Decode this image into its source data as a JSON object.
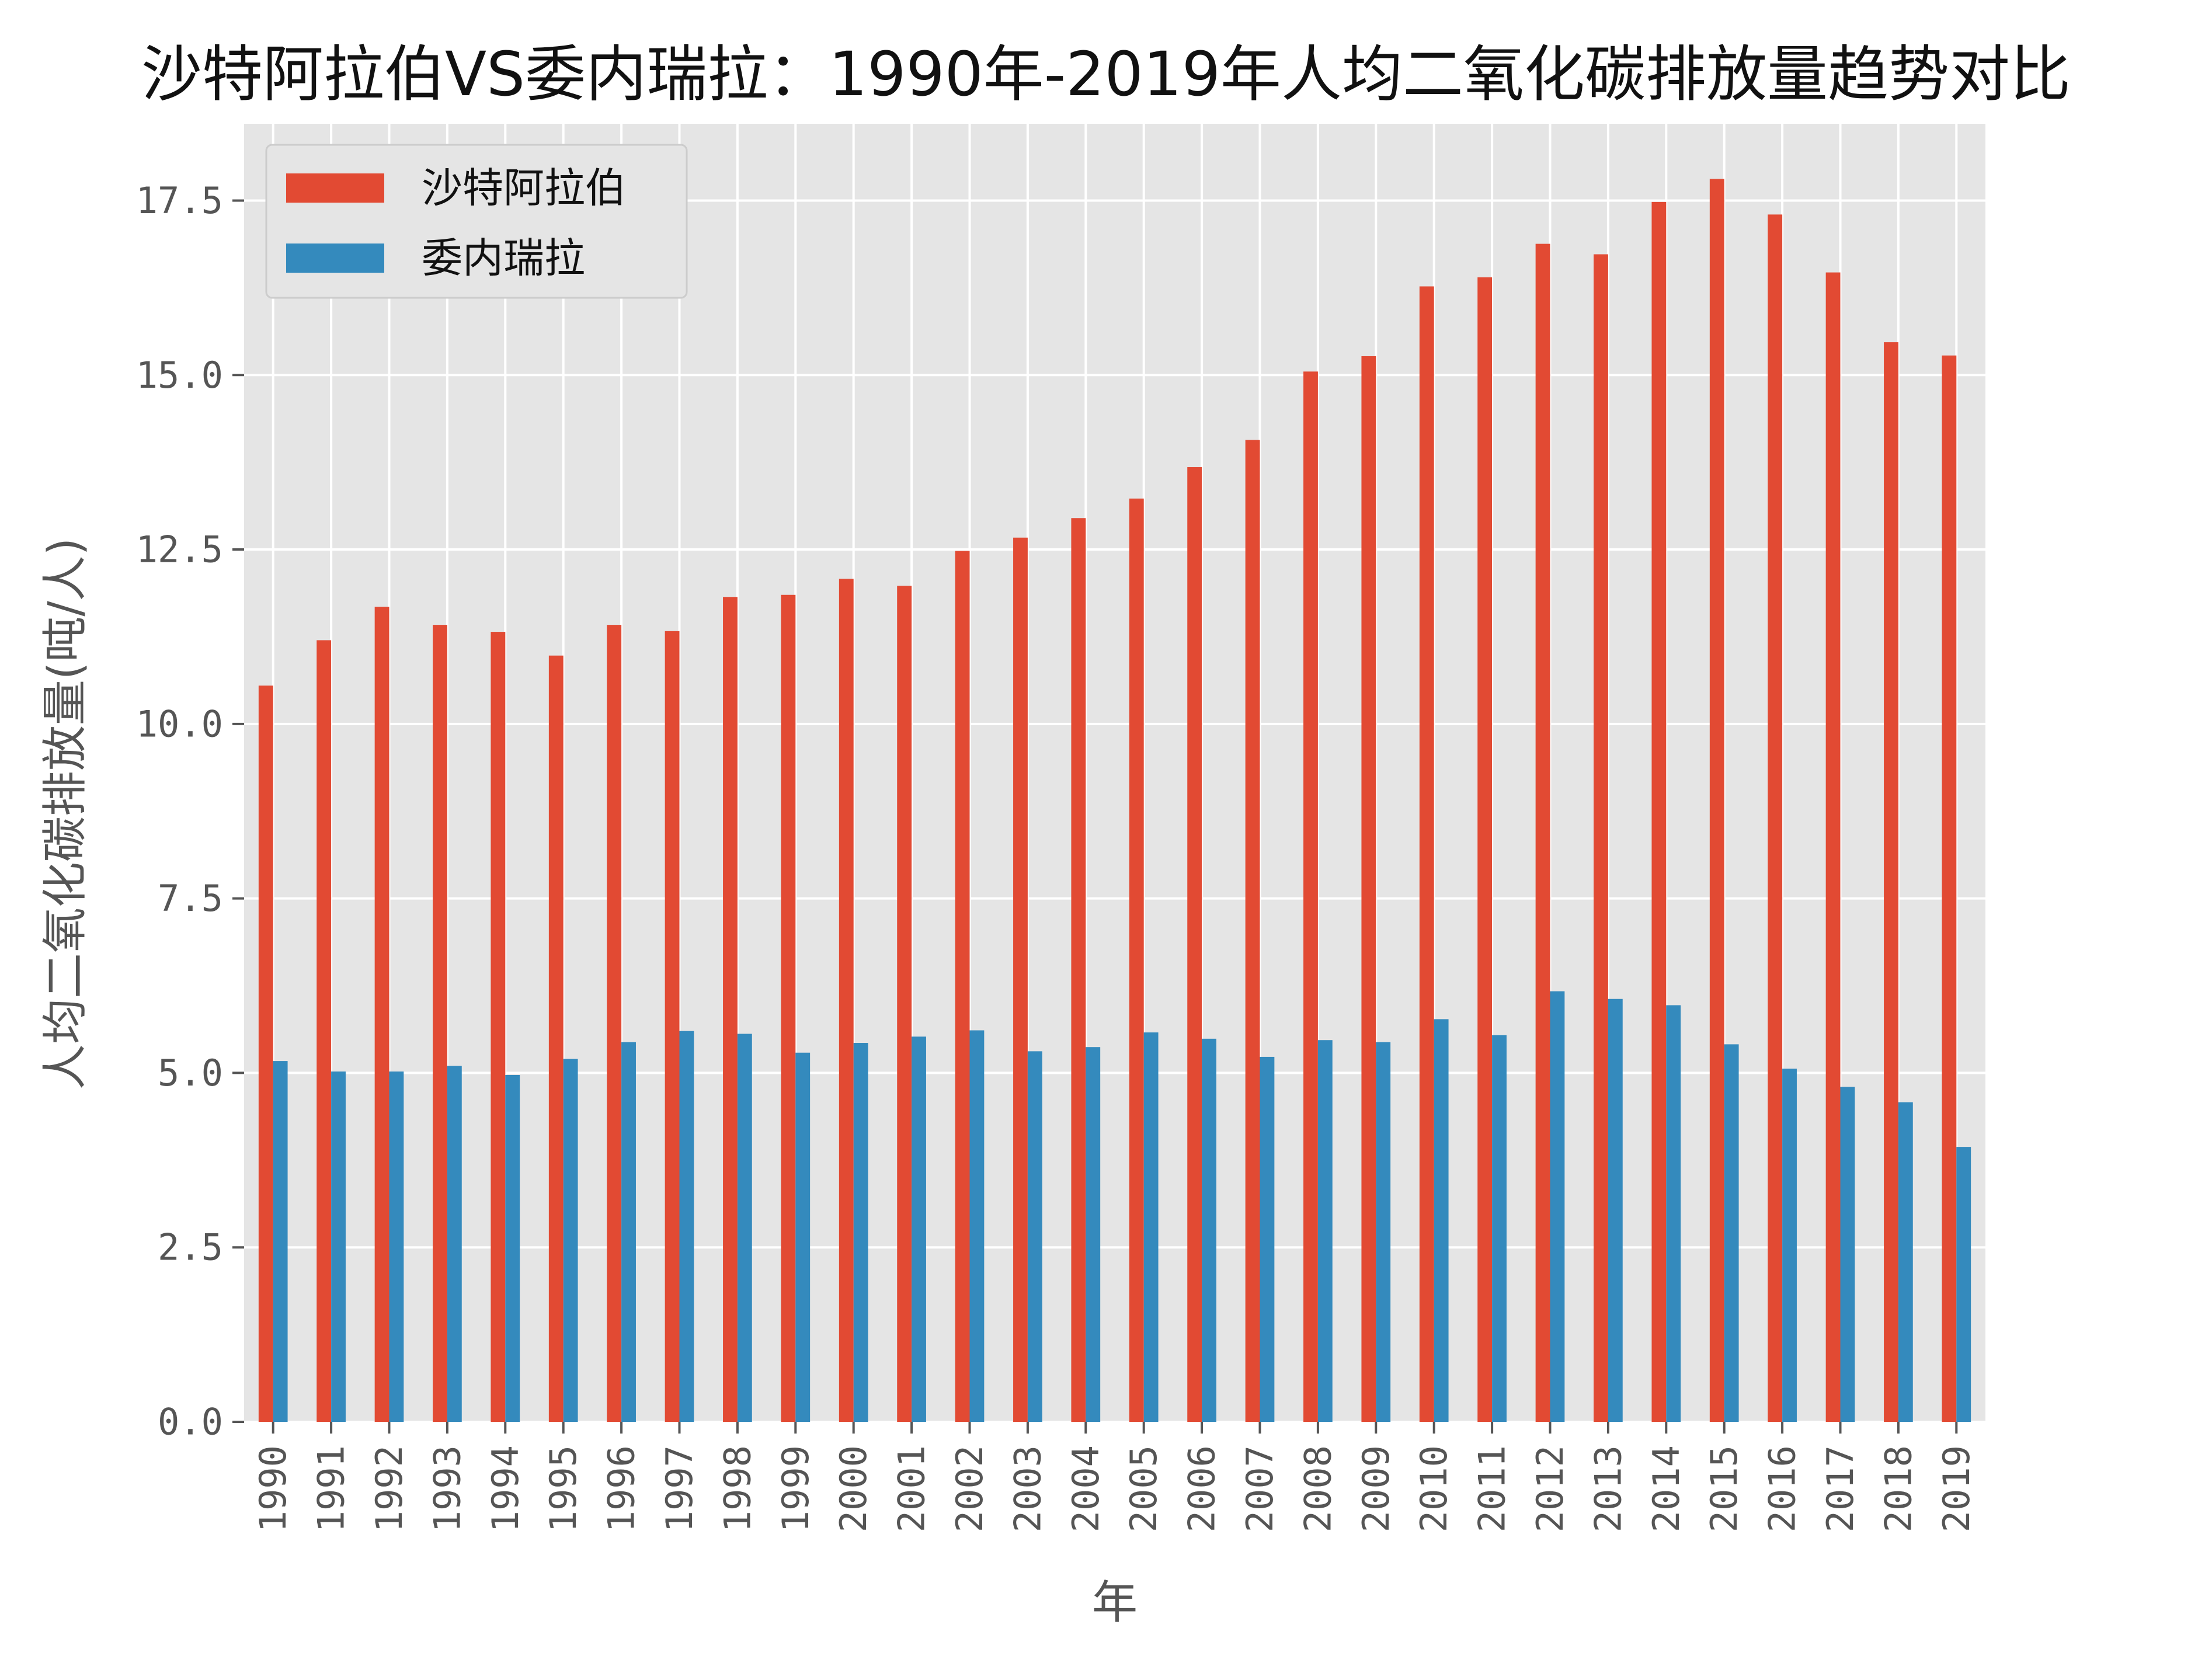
{
  "chart_data": {
    "type": "bar",
    "title": "沙特阿拉伯VS委内瑞拉：1990年-2019年人均二氧化碳排放量趋势对比",
    "xlabel": "年",
    "ylabel": "人均二氧化碳排放量(吨/人)",
    "ylim": [
      0,
      18.6
    ],
    "yticks": [
      "0.0",
      "2.5",
      "5.0",
      "7.5",
      "10.0",
      "12.5",
      "15.0",
      "17.5"
    ],
    "grid": true,
    "legend_position": "top-left",
    "categories": [
      "1990",
      "1991",
      "1992",
      "1993",
      "1994",
      "1995",
      "1996",
      "1997",
      "1998",
      "1999",
      "2000",
      "2001",
      "2002",
      "2003",
      "2004",
      "2005",
      "2006",
      "2007",
      "2008",
      "2009",
      "2010",
      "2011",
      "2012",
      "2013",
      "2014",
      "2015",
      "2016",
      "2017",
      "2018",
      "2019"
    ],
    "series": [
      {
        "name": "沙特阿拉伯",
        "color": "#E24A33",
        "values": [
          10.55,
          11.2,
          11.68,
          11.42,
          11.32,
          10.98,
          11.42,
          11.33,
          11.82,
          11.85,
          12.08,
          11.98,
          12.48,
          12.67,
          12.95,
          13.23,
          13.68,
          14.07,
          15.05,
          15.27,
          16.27,
          16.4,
          16.88,
          16.73,
          17.48,
          17.81,
          17.3,
          16.47,
          15.47,
          15.28
        ]
      },
      {
        "name": "委内瑞拉",
        "color": "#348ABD",
        "values": [
          5.17,
          5.02,
          5.02,
          5.1,
          4.97,
          5.2,
          5.44,
          5.6,
          5.56,
          5.29,
          5.43,
          5.52,
          5.61,
          5.31,
          5.37,
          5.58,
          5.49,
          5.23,
          5.47,
          5.44,
          5.77,
          5.54,
          6.17,
          6.06,
          5.97,
          5.41,
          5.06,
          4.8,
          4.58,
          3.94
        ]
      }
    ]
  },
  "style": {
    "plot_background": "#E5E5E5",
    "grid_color": "#FFFFFF",
    "text_color": "#555555"
  }
}
